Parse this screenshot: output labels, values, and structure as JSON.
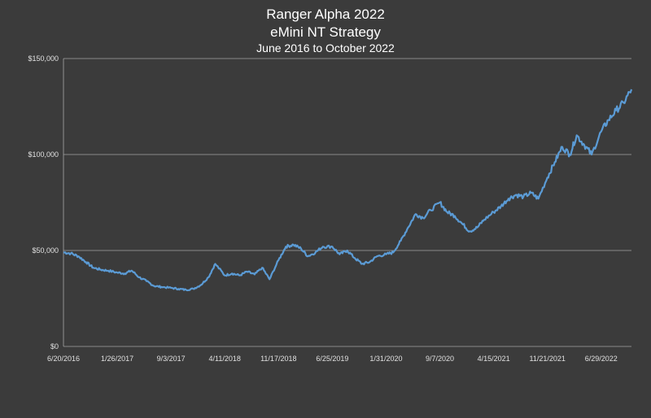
{
  "chart_data": {
    "type": "line",
    "title": "Ranger Alpha 2022",
    "subtitle": "eMini NT Strategy",
    "subtitle2": "June 2016 to October 2022",
    "ylim": [
      0,
      150000
    ],
    "yticks": [
      "$0",
      "$50,000",
      "$100,000",
      "$150,000"
    ],
    "ytick_values": [
      0,
      50000,
      100000,
      150000
    ],
    "xticks": [
      "6/20/2016",
      "1/26/2017",
      "9/3/2017",
      "4/11/2018",
      "11/17/2018",
      "6/25/2019",
      "1/31/2020",
      "9/7/2020",
      "4/15/2021",
      "11/21/2021",
      "6/29/2022"
    ],
    "xlim": [
      "2016-06-20",
      "2022-10-31"
    ],
    "grid": "horizontal",
    "colors": {
      "background": "#3b3b3b",
      "line": "#5b9bd5",
      "grid": "#a6a6a6",
      "axis": "#a6a6a6"
    },
    "series": [
      {
        "x": [
          "2016-06-20",
          "2016-07-20",
          "2016-08-20",
          "2016-09-20",
          "2016-10-20",
          "2016-11-20",
          "2016-12-20",
          "2017-01-26",
          "2017-02-26",
          "2017-03-26",
          "2017-04-26",
          "2017-05-26",
          "2017-06-26",
          "2017-07-26",
          "2017-09-03",
          "2017-10-03",
          "2017-11-03",
          "2017-12-03",
          "2018-01-03",
          "2018-02-03",
          "2018-03-03",
          "2018-04-11",
          "2018-05-11",
          "2018-06-11",
          "2018-07-11",
          "2018-08-11",
          "2018-09-11",
          "2018-10-11",
          "2018-11-17",
          "2018-12-17",
          "2019-01-17",
          "2019-02-17",
          "2019-03-17",
          "2019-04-17",
          "2019-05-17",
          "2019-06-25",
          "2019-07-25",
          "2019-08-25",
          "2019-09-25",
          "2019-10-25",
          "2019-11-25",
          "2019-12-25",
          "2020-01-31",
          "2020-02-29",
          "2020-03-31",
          "2020-04-30",
          "2020-05-31",
          "2020-06-30",
          "2020-07-31",
          "2020-09-07",
          "2020-10-07",
          "2020-11-07",
          "2020-12-07",
          "2021-01-07",
          "2021-02-07",
          "2021-03-07",
          "2021-04-15",
          "2021-05-15",
          "2021-06-15",
          "2021-07-15",
          "2021-08-15",
          "2021-09-15",
          "2021-10-15",
          "2021-11-21",
          "2021-12-21",
          "2022-01-21",
          "2022-02-21",
          "2022-03-21",
          "2022-04-21",
          "2022-05-21",
          "2022-06-29",
          "2022-07-29",
          "2022-08-29",
          "2022-09-29",
          "2022-10-31"
        ],
        "values": [
          49000,
          48500,
          47000,
          44000,
          41000,
          40000,
          39500,
          38500,
          38000,
          39500,
          36000,
          34000,
          31500,
          31000,
          30500,
          30000,
          29500,
          30000,
          32000,
          36000,
          43000,
          37000,
          38000,
          37000,
          39000,
          37500,
          41000,
          35000,
          45000,
          52000,
          53000,
          51000,
          47000,
          49000,
          52000,
          52000,
          48000,
          50000,
          46000,
          43000,
          44000,
          47000,
          48000,
          49000,
          55000,
          62000,
          69000,
          67000,
          71000,
          75000,
          70000,
          68000,
          64000,
          60000,
          62000,
          66000,
          70000,
          73000,
          77000,
          79000,
          78000,
          80000,
          77000,
          88000,
          96000,
          104000,
          100000,
          110000,
          105000,
          100000,
          112000,
          118000,
          123000,
          127000,
          134000
        ]
      }
    ]
  }
}
